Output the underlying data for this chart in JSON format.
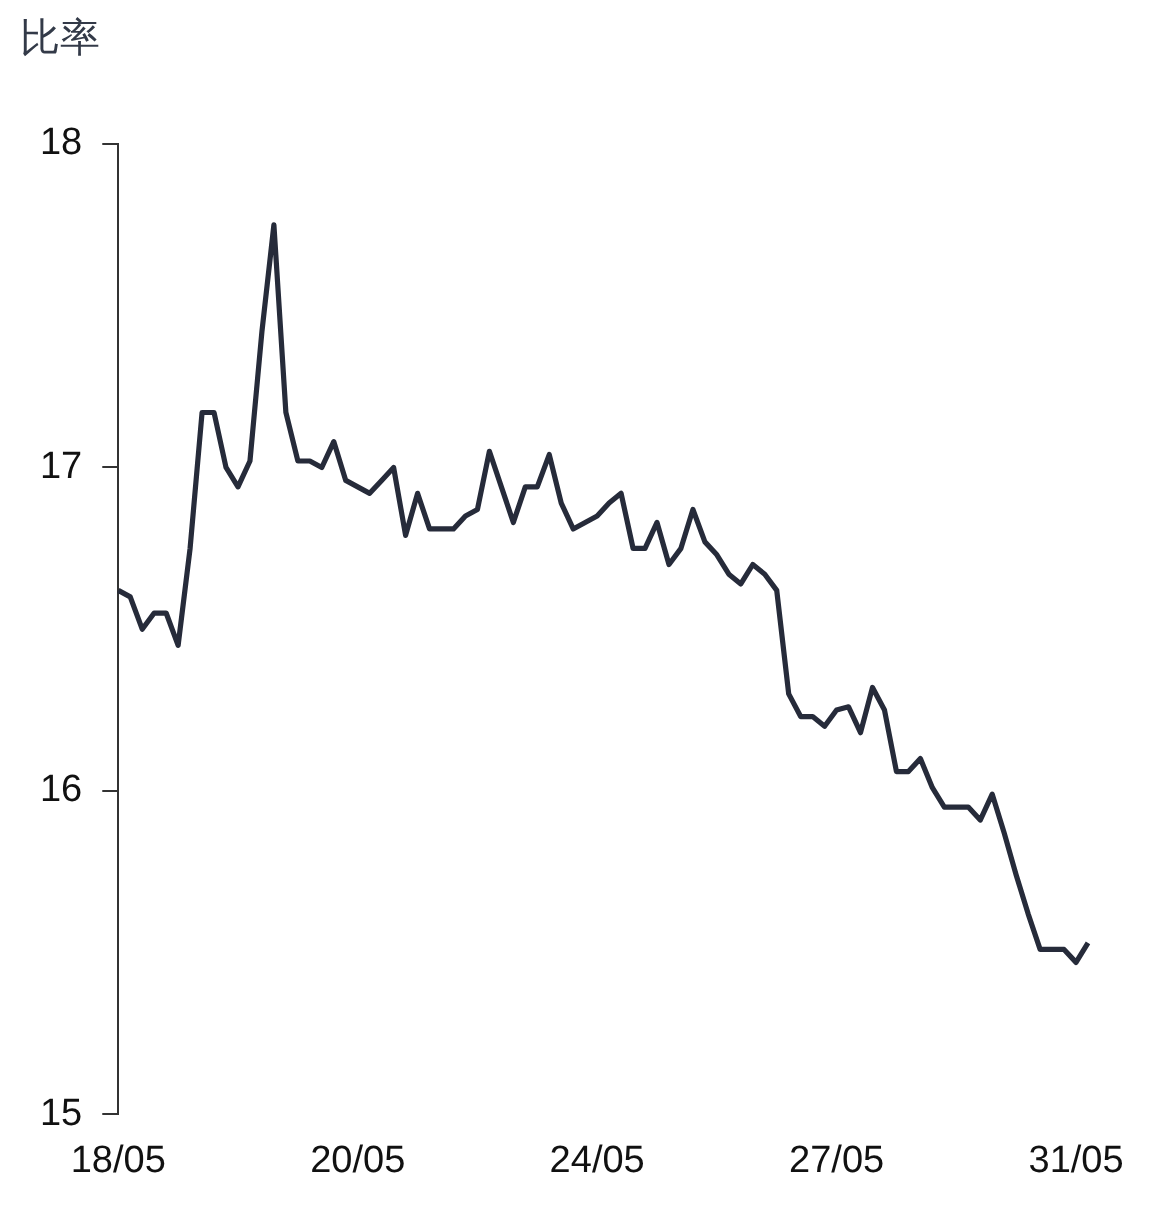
{
  "chart_data": {
    "type": "line",
    "ylabel": "比率",
    "categories": [
      "18/05",
      null,
      null,
      null,
      null,
      null,
      null,
      null,
      null,
      null,
      null,
      null,
      null,
      null,
      null,
      null,
      null,
      null,
      null,
      null,
      "20/05",
      null,
      null,
      null,
      null,
      null,
      null,
      null,
      null,
      null,
      null,
      null,
      null,
      null,
      null,
      null,
      null,
      null,
      null,
      null,
      "24/05",
      null,
      null,
      null,
      null,
      null,
      null,
      null,
      null,
      null,
      null,
      null,
      null,
      null,
      null,
      null,
      null,
      null,
      null,
      null,
      "27/05",
      null,
      null,
      null,
      null,
      null,
      null,
      null,
      null,
      null,
      null,
      null,
      null,
      null,
      null,
      null,
      null,
      null,
      null,
      null,
      "31/05",
      null
    ],
    "series": [
      {
        "color": "#262b3a",
        "values": [
          16.62,
          16.6,
          16.5,
          16.55,
          16.55,
          16.45,
          16.75,
          17.17,
          17.17,
          17.0,
          16.94,
          17.02,
          17.42,
          17.75,
          17.17,
          17.02,
          17.02,
          17.0,
          17.08,
          16.96,
          16.94,
          16.92,
          16.96,
          17.0,
          16.79,
          16.92,
          16.81,
          16.81,
          16.81,
          16.85,
          16.87,
          17.05,
          16.94,
          16.83,
          16.94,
          16.94,
          17.04,
          16.89,
          16.81,
          16.83,
          16.85,
          16.89,
          16.92,
          16.75,
          16.75,
          16.83,
          16.7,
          16.75,
          16.87,
          16.77,
          16.73,
          16.67,
          16.64,
          16.7,
          16.67,
          16.62,
          16.3,
          16.23,
          16.23,
          16.2,
          16.25,
          16.26,
          16.18,
          16.32,
          16.25,
          16.06,
          16.06,
          16.1,
          16.01,
          15.95,
          15.95,
          15.95,
          15.91,
          15.99,
          15.87,
          15.74,
          15.62,
          15.51,
          15.51,
          15.51,
          15.47,
          15.53
        ]
      }
    ],
    "ylim": [
      15,
      18
    ],
    "yticks": [
      15,
      16,
      17,
      18
    ],
    "grid": false,
    "legend": false,
    "marker": "none",
    "line_style": "solid"
  }
}
